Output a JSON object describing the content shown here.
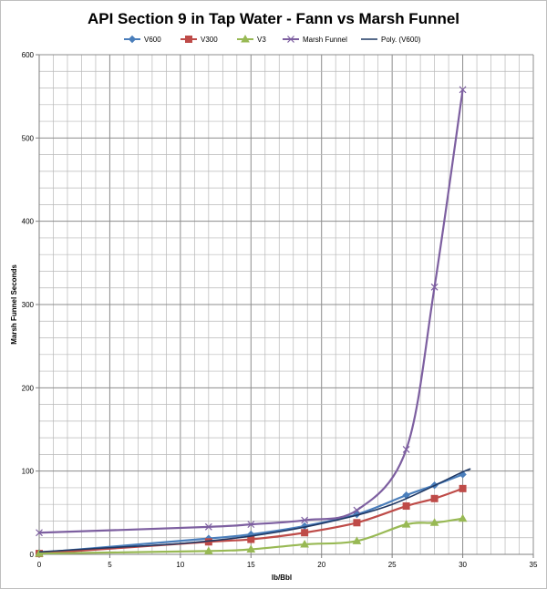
{
  "chart_data": {
    "type": "line",
    "title": "API Section 9 in Tap Water - Fann vs Marsh Funnel",
    "xlabel": "lb/Bbl",
    "ylabel": "Marsh Funnel Seconds",
    "xlim": [
      0,
      35
    ],
    "ylim": [
      0,
      600
    ],
    "x_ticks": [
      0,
      5,
      10,
      15,
      20,
      25,
      30,
      35
    ],
    "y_ticks": [
      0,
      100,
      200,
      300,
      400,
      500,
      600
    ],
    "x_minor_step": 1,
    "y_minor_step": 20,
    "grid": true,
    "legend_position": "top",
    "series": [
      {
        "name": "V600",
        "color": "#4a7ebb",
        "marker": "diamond",
        "points": [
          [
            0,
            2
          ],
          [
            12,
            19
          ],
          [
            15,
            24
          ],
          [
            18.8,
            34
          ],
          [
            22.5,
            48
          ],
          [
            26,
            71
          ],
          [
            28,
            83
          ],
          [
            30,
            96
          ]
        ]
      },
      {
        "name": "V300",
        "color": "#be4b48",
        "marker": "square",
        "points": [
          [
            0,
            1
          ],
          [
            12,
            15
          ],
          [
            15,
            18
          ],
          [
            18.8,
            26
          ],
          [
            22.5,
            38
          ],
          [
            26,
            58
          ],
          [
            28,
            67
          ],
          [
            30,
            79
          ]
        ]
      },
      {
        "name": "V3",
        "color": "#98b954",
        "marker": "triangle",
        "points": [
          [
            0,
            1
          ],
          [
            12,
            4
          ],
          [
            15,
            6
          ],
          [
            18.8,
            12
          ],
          [
            22.5,
            16
          ],
          [
            26,
            36
          ],
          [
            28,
            38
          ],
          [
            30,
            43
          ]
        ]
      },
      {
        "name": "Marsh Funnel",
        "color": "#7d5fa0",
        "marker": "x",
        "points": [
          [
            0,
            26
          ],
          [
            12,
            33
          ],
          [
            15,
            36
          ],
          [
            18.8,
            41
          ],
          [
            22.5,
            53
          ],
          [
            26,
            126
          ],
          [
            28,
            321
          ],
          [
            30,
            558
          ]
        ]
      },
      {
        "name": "Poly. (V600)",
        "color": "#1f3864",
        "marker": "none",
        "trend": true,
        "points": [
          [
            0,
            3
          ],
          [
            5,
            8
          ],
          [
            10,
            13
          ],
          [
            15,
            22
          ],
          [
            20,
            37
          ],
          [
            25,
            60
          ],
          [
            30,
            99
          ],
          [
            30.4,
            101
          ]
        ]
      }
    ]
  }
}
